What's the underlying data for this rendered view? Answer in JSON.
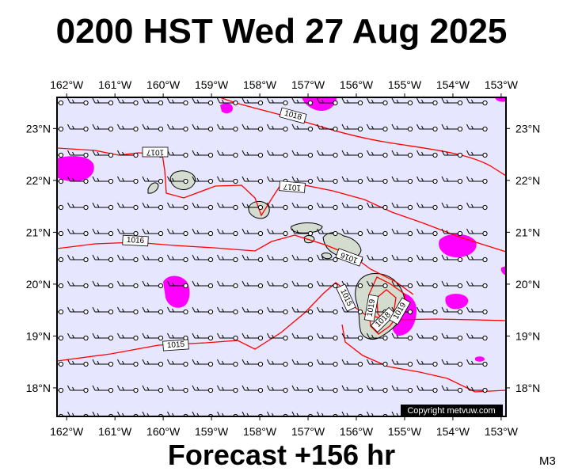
{
  "title": "0200 HST Wed 27 Aug 2025",
  "footer": "Forecast +156 hr",
  "model_code": "M3",
  "copyright": "Copyright metvuw.com",
  "map": {
    "lon_range": [
      -162.2,
      -152.9
    ],
    "lat_range": [
      17.45,
      23.6
    ],
    "lon_ticks": [
      "162°W",
      "161°W",
      "160°W",
      "159°W",
      "158°W",
      "157°W",
      "156°W",
      "155°W",
      "154°W",
      "153°W"
    ],
    "lat_ticks": [
      "18°N",
      "19°N",
      "20°N",
      "21°N",
      "22°N",
      "23°N"
    ],
    "isobar_labels": [
      "1018",
      "1017",
      "1017",
      "1016",
      "1016",
      "1015",
      "1015",
      "1019",
      "1018",
      "1019"
    ],
    "colors": {
      "ocean": "#e6e6ff",
      "isobar": "#ff0000",
      "rain": "#ff00ff",
      "land": "#d4dcd0",
      "barb": "#000000"
    },
    "wind_barb_icon": "wind-barb-icon",
    "station_icon": "open-circle-icon"
  }
}
